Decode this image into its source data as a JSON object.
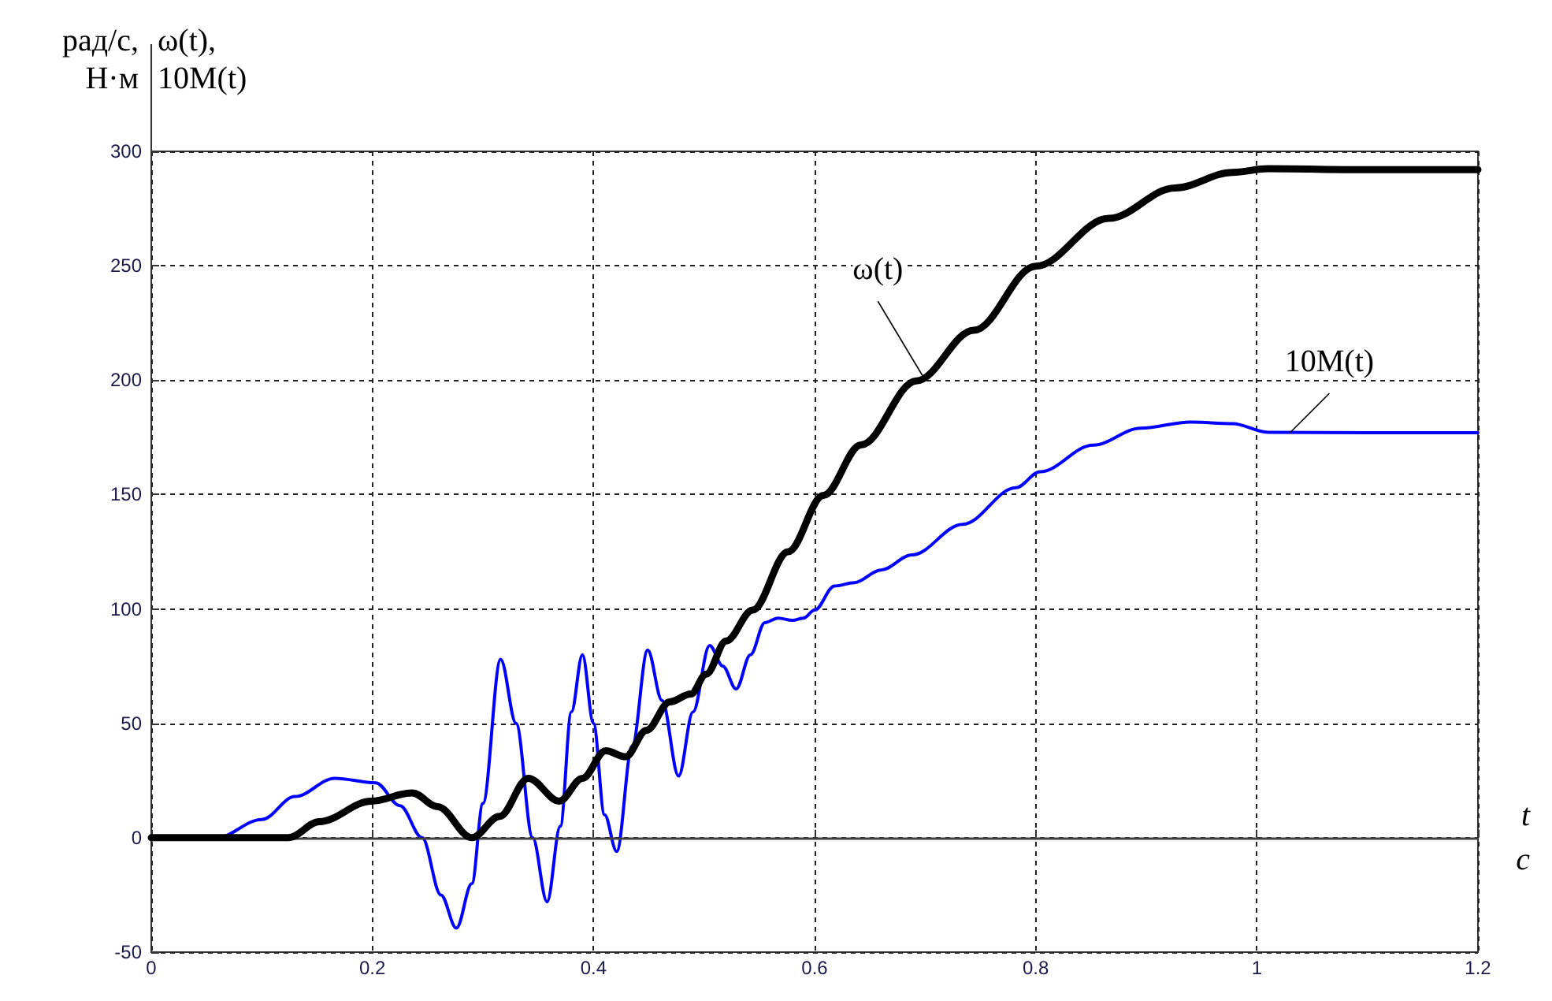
{
  "chart_data": {
    "type": "line",
    "xlabel": "t\nс",
    "ylabel": "рад/с,\nН·м",
    "annotations": [
      "ω(t),\n10M(t)",
      {
        "text": "ω(t)",
        "x": 0.7,
        "y": 200
      },
      {
        "text": "10M(t)",
        "x": 1.03,
        "y": 177
      }
    ],
    "xlim": [
      0,
      1.2
    ],
    "xticks": [
      0,
      0.2,
      0.4,
      0.6,
      0.8,
      1,
      1.2
    ],
    "ylim": [
      -50,
      300
    ],
    "yticks": [
      -50,
      0,
      50,
      100,
      150,
      200,
      250,
      300
    ],
    "grid": true,
    "line_style": "solid",
    "marker": "none",
    "ref_lines": [
      {
        "axis": "y",
        "value": 0,
        "color": "#404040"
      }
    ],
    "series": [
      {
        "color": "#0000ff",
        "x": [
          0,
          0.059,
          0.1,
          0.13,
          0.166,
          0.203,
          0.225,
          0.245,
          0.262,
          0.276,
          0.29,
          0.3,
          0.316,
          0.33,
          0.345,
          0.358,
          0.37,
          0.38,
          0.39,
          0.4,
          0.41,
          0.421,
          0.435,
          0.449,
          0.462,
          0.477,
          0.49,
          0.505,
          0.517,
          0.529,
          0.542,
          0.555,
          0.567,
          0.58,
          0.59,
          0.6,
          0.618,
          0.636,
          0.66,
          0.688,
          0.734,
          0.782,
          0.804,
          0.852,
          0.895,
          0.94,
          0.978,
          1.01,
          1.1,
          1.2
        ],
        "values": [
          0,
          0,
          8,
          18,
          26,
          24,
          14,
          0,
          -25,
          -39.5,
          -20,
          15,
          78,
          50,
          0,
          -28,
          5,
          55,
          80,
          50,
          10,
          -6,
          40,
          82,
          60,
          27,
          55,
          84,
          75,
          65,
          80,
          94,
          96,
          95,
          96,
          99.5,
          110,
          111.5,
          117,
          123.6,
          137,
          153,
          160,
          171.6,
          179,
          181.7,
          181,
          177.2,
          177,
          177
        ]
      },
      {
        "color": "#000000",
        "x": [
          0,
          0.124,
          0.152,
          0.199,
          0.236,
          0.259,
          0.29,
          0.315,
          0.341,
          0.369,
          0.39,
          0.411,
          0.429,
          0.448,
          0.469,
          0.488,
          0.502,
          0.52,
          0.544,
          0.576,
          0.608,
          0.642,
          0.692,
          0.744,
          0.8,
          0.866,
          0.926,
          0.978,
          1.01,
          1.1,
          1.2
        ],
        "values": [
          0,
          0,
          7,
          16,
          19.6,
          13.6,
          0,
          9.3,
          26,
          16,
          26,
          38,
          35.4,
          47,
          59.4,
          62.8,
          71.5,
          86,
          99.5,
          125,
          149.6,
          171.7,
          199.7,
          221.8,
          249.8,
          270.7,
          284,
          290.8,
          292.4,
          292,
          292
        ]
      }
    ]
  }
}
